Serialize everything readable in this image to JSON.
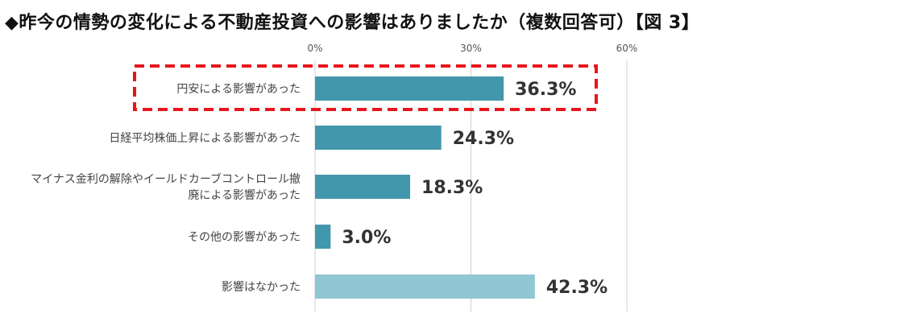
{
  "title": "◆昨今の情勢の変化による不動産投資への影響はありましたか（複数回答可）【図 3】",
  "chart_data": {
    "type": "bar",
    "orientation": "horizontal",
    "xlim": [
      0,
      60
    ],
    "ticks": [
      "0%",
      "30%",
      "60%"
    ],
    "grid": true,
    "categories": [
      [
        "円安による影響があった"
      ],
      [
        "日経平均株価上昇による影響があった"
      ],
      [
        "マイナス金利の解除やイールドカーブコントロール撤",
        "廃による影響があった"
      ],
      [
        "その他の影響があった"
      ],
      [
        "影響はなかった"
      ]
    ],
    "values": [
      36.3,
      24.3,
      18.3,
      3.0,
      42.3
    ],
    "labels": [
      "36.3%",
      "24.3%",
      "18.3%",
      "3.0%",
      "42.3%"
    ],
    "colors": [
      "#4397ac",
      "#4397ac",
      "#4397ac",
      "#4397ac",
      "#91c6d3"
    ],
    "highlight_index": 0,
    "highlight_color": "#e8161b"
  }
}
